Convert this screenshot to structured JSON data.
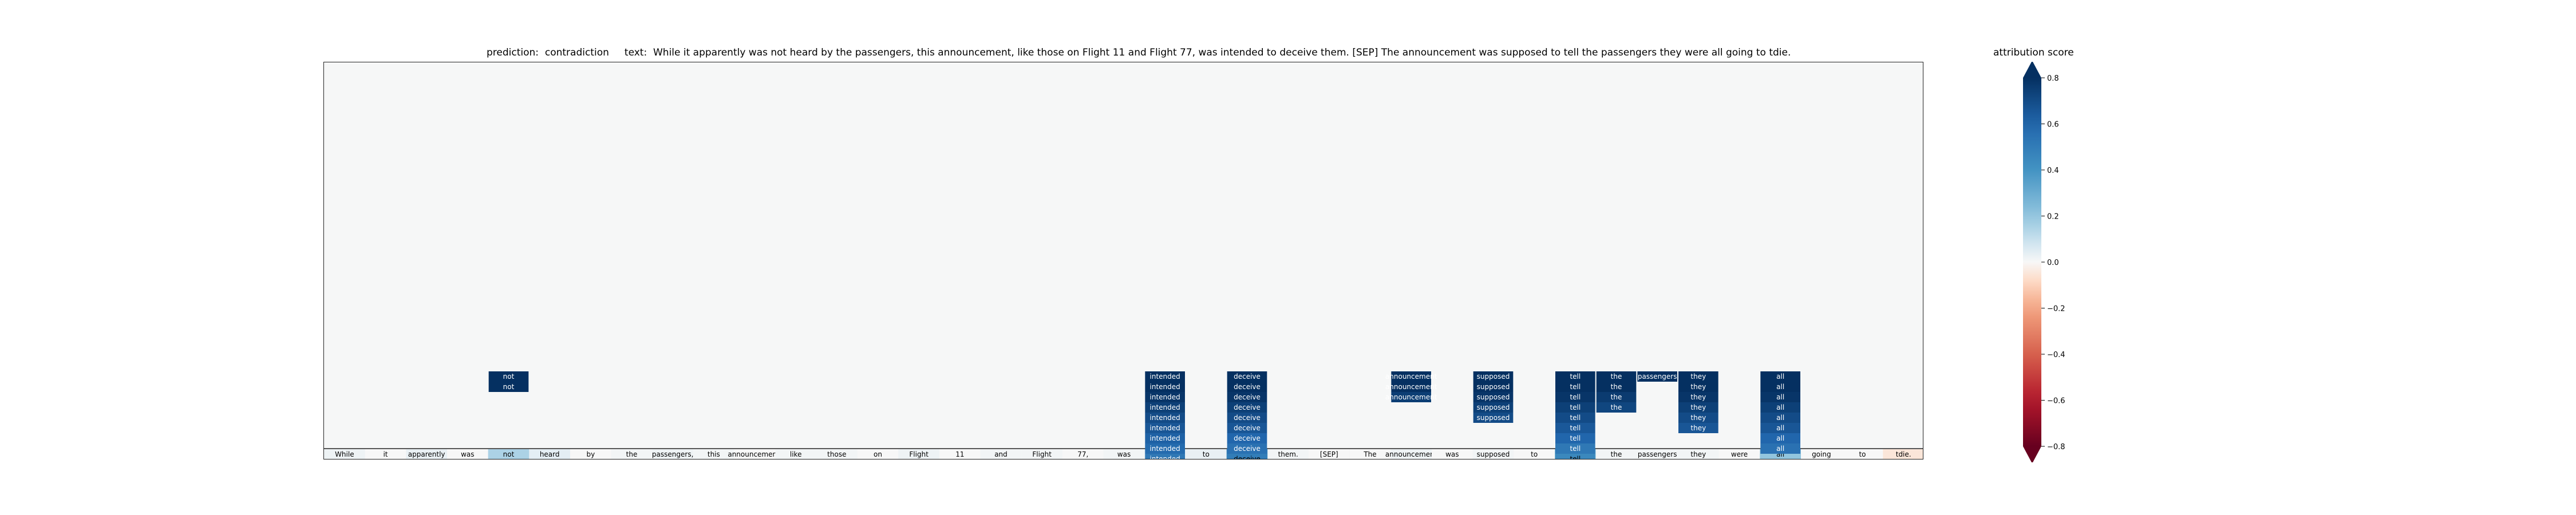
{
  "title": {
    "prediction_label": "prediction:",
    "prediction": "contradiction",
    "text_label": "text:",
    "text": "While it apparently was not heard by the passengers, this announcement, like those on Flight 11 and Flight 77, was intended to deceive them. [SEP] The announcement was supposed to tell the passengers they were all going to tdie."
  },
  "colorbar": {
    "title": "attribution score",
    "ticks": [
      "0.8",
      "0.6",
      "0.4",
      "0.2",
      "0.0",
      "−0.2",
      "−0.4",
      "−0.6",
      "−0.8"
    ],
    "range": [
      -0.8,
      0.8
    ],
    "colormap": "RdBu",
    "extend": "both"
  },
  "chart_data": {
    "type": "heatmap",
    "title": "prediction:  contradiction     text:  While it apparently was not heard by the passengers, this announcement, like those on Flight 11 and Flight 77, was intended to deceive them. [SEP] The announcement was supposed to tell the passengers they were all going to tdie.",
    "tokens": [
      "While",
      "it",
      "apparently",
      "was",
      "not",
      "heard",
      "by",
      "the",
      "passengers,",
      "this",
      "announcement,",
      "like",
      "those",
      "on",
      "Flight",
      "11",
      "and",
      "Flight",
      "77,",
      "was",
      "intended",
      "to",
      "deceive",
      "them.",
      "[SEP]",
      "The",
      "announcement",
      "was",
      "supposed",
      "to",
      "tell",
      "the",
      "passengers",
      "they",
      "were",
      "all",
      "going",
      "to",
      "tdie."
    ],
    "scores": [
      0.02,
      0.0,
      0.03,
      0.0,
      0.15,
      0.04,
      0.0,
      0.01,
      0.02,
      0.01,
      0.0,
      0.01,
      0.01,
      0.0,
      0.02,
      0.0,
      0.01,
      0.01,
      0.0,
      0.01,
      0.05,
      0.03,
      0.45,
      0.01,
      0.0,
      0.0,
      0.02,
      0.0,
      0.01,
      0.0,
      0.25,
      0.01,
      0.01,
      0.01,
      0.0,
      0.2,
      0.0,
      0.0,
      -0.05
    ],
    "columns": [
      {
        "token_index": 4,
        "label": "not",
        "values": [
          0.85,
          0.85
        ]
      },
      {
        "token_index": 20,
        "label": "intended",
        "values": [
          0.85,
          0.82,
          0.78,
          0.74,
          0.7,
          0.66,
          0.62,
          0.58,
          0.52
        ]
      },
      {
        "token_index": 22,
        "label": "deceive",
        "values": [
          0.85,
          0.82,
          0.78,
          0.74,
          0.7,
          0.66,
          0.6,
          0.55,
          0.5,
          0.45
        ]
      },
      {
        "token_index": 26,
        "label": "announcement",
        "values": [
          0.82,
          0.8,
          0.75
        ]
      },
      {
        "token_index": 28,
        "label": "supposed",
        "values": [
          0.85,
          0.82,
          0.78,
          0.74,
          0.7
        ]
      },
      {
        "token_index": 30,
        "label": "tell",
        "values": [
          0.85,
          0.82,
          0.78,
          0.74,
          0.7,
          0.65,
          0.6,
          0.52,
          0.45,
          0.35
        ]
      },
      {
        "token_index": 31,
        "label": "the",
        "values": [
          0.85,
          0.8,
          0.76,
          0.72
        ]
      },
      {
        "token_index": 32,
        "label": "passengers",
        "values": [
          0.85
        ]
      },
      {
        "token_index": 33,
        "label": "they",
        "values": [
          0.85,
          0.82,
          0.78,
          0.74,
          0.7,
          0.66
        ]
      },
      {
        "token_index": 35,
        "label": "all",
        "values": [
          0.85,
          0.82,
          0.78,
          0.74,
          0.7,
          0.66,
          0.6,
          0.55
        ]
      }
    ]
  }
}
